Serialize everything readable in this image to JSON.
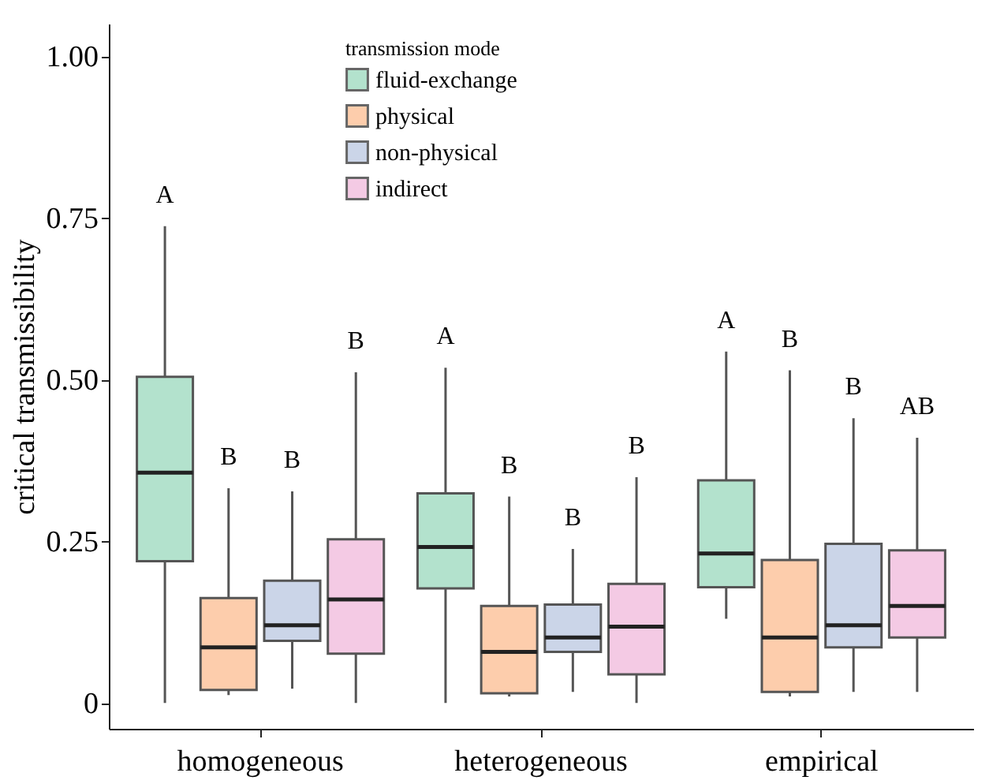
{
  "chart_data": {
    "type": "box",
    "ylabel": "critical transmissibility",
    "legend_title": "transmission mode",
    "legend": "top left",
    "grid": false,
    "categories": [
      "homogeneous",
      "heterogeneous",
      "empirical"
    ],
    "ylim": [
      -0.04,
      1.05
    ],
    "yticks": [
      0,
      {
        "value": 0.25,
        "label": "0.25"
      },
      {
        "value": 0.5,
        "label": "0.50"
      },
      {
        "value": 0.75,
        "label": "0.75"
      },
      {
        "value": 1,
        "label": "1.00"
      }
    ],
    "series": [
      {
        "name": "fluid-exchange",
        "color": "#b3e2cd",
        "boxes": [
          {
            "low": 0,
            "q1": 0.219,
            "median": 0.356,
            "q3": 0.504,
            "high": 0.737
          },
          {
            "low": 0,
            "q1": 0.177,
            "median": 0.241,
            "q3": 0.324,
            "high": 0.518
          },
          {
            "low": 0.13,
            "q1": 0.179,
            "median": 0.231,
            "q3": 0.344,
            "high": 0.543
          }
        ]
      },
      {
        "name": "physical",
        "color": "#fdcdac",
        "boxes": [
          {
            "low": 0.012,
            "q1": 0.02,
            "median": 0.086,
            "q3": 0.162,
            "high": 0.332
          },
          {
            "low": 0.01,
            "q1": 0.015,
            "median": 0.079,
            "q3": 0.15,
            "high": 0.319
          },
          {
            "low": 0.01,
            "q1": 0.017,
            "median": 0.101,
            "q3": 0.221,
            "high": 0.514
          }
        ]
      },
      {
        "name": "non-physical",
        "color": "#cbd5e8",
        "boxes": [
          {
            "low": 0.022,
            "q1": 0.096,
            "median": 0.12,
            "q3": 0.189,
            "high": 0.327
          },
          {
            "low": 0.017,
            "q1": 0.079,
            "median": 0.101,
            "q3": 0.152,
            "high": 0.238
          },
          {
            "low": 0.017,
            "q1": 0.086,
            "median": 0.12,
            "q3": 0.246,
            "high": 0.44
          }
        ]
      },
      {
        "name": "indirect",
        "color": "#f4cae4",
        "boxes": [
          {
            "low": 0,
            "q1": 0.076,
            "median": 0.16,
            "q3": 0.253,
            "high": 0.511
          },
          {
            "low": 0,
            "q1": 0.044,
            "median": 0.118,
            "q3": 0.184,
            "high": 0.349
          },
          {
            "low": 0.017,
            "q1": 0.101,
            "median": 0.15,
            "q3": 0.236,
            "high": 0.41
          }
        ]
      }
    ],
    "annotations": [
      "A",
      "B",
      "B",
      "B",
      "A",
      "B",
      "B",
      "B",
      "A",
      "B",
      "B",
      "AB"
    ]
  }
}
